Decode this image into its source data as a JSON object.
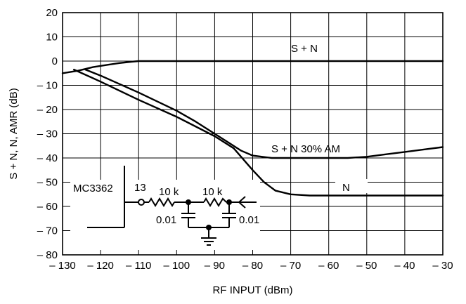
{
  "chart_data": {
    "type": "line",
    "title": "",
    "xlabel": "RF INPUT (dBm)",
    "ylabel": "S + N, N, AMR (dB)",
    "xlim": [
      -130,
      -30
    ],
    "ylim": [
      -80,
      20
    ],
    "grid": true,
    "x_ticks": [
      -130,
      -120,
      -110,
      -100,
      -90,
      -80,
      -70,
      -60,
      -50,
      -40,
      -30
    ],
    "y_ticks": [
      20,
      10,
      0,
      -10,
      -20,
      -30,
      -40,
      -50,
      -60,
      -70,
      -80
    ],
    "x_tick_labels": [
      "– 130",
      "– 120",
      "– 110",
      "– 100",
      "– 90",
      "– 80",
      "– 70",
      "– 60",
      "– 50",
      "– 40",
      "– 30"
    ],
    "y_tick_labels": [
      "20",
      "10",
      "0",
      "– 10",
      "– 20",
      "– 30",
      "– 40",
      "– 50",
      "– 60",
      "– 70",
      "– 80"
    ],
    "series": [
      {
        "name": "S + N",
        "x": [
          -130,
          -126,
          -122,
          -118,
          -115,
          -112,
          -110,
          -105,
          -100,
          -90,
          -80,
          -70,
          -60,
          -50,
          -40,
          -30
        ],
        "y": [
          -5,
          -4,
          -2.5,
          -1.5,
          -0.8,
          -0.3,
          0,
          0,
          0,
          0,
          0,
          0,
          0,
          0,
          0,
          0
        ]
      },
      {
        "name": "S + N 30% AM",
        "x": [
          -124,
          -120,
          -110,
          -100,
          -95,
          -90,
          -86,
          -83,
          -80,
          -75,
          -70,
          -60,
          -55,
          -50,
          -45,
          -40,
          -35,
          -30
        ],
        "y": [
          -3.5,
          -6,
          -13,
          -20.5,
          -25,
          -30,
          -34,
          -37,
          -39,
          -40,
          -40,
          -40,
          -40,
          -39.5,
          -38.5,
          -37.5,
          -36.5,
          -35.5
        ]
      },
      {
        "name": "N",
        "x": [
          -127,
          -120,
          -110,
          -100,
          -90,
          -85,
          -80,
          -77,
          -74,
          -70,
          -65,
          -60,
          -50,
          -40,
          -30
        ],
        "y": [
          -3.5,
          -8.5,
          -16,
          -23,
          -31,
          -36,
          -45,
          -50,
          -53.5,
          -55,
          -55.5,
          -55.5,
          -55.5,
          -55.5,
          -55.5
        ]
      }
    ],
    "inset_circuit": {
      "device": "MC3362",
      "pin": "13",
      "resistor_1": "10 k",
      "resistor_2": "10 k",
      "capacitor_1": "0.01",
      "capacitor_2": "0.01"
    }
  }
}
